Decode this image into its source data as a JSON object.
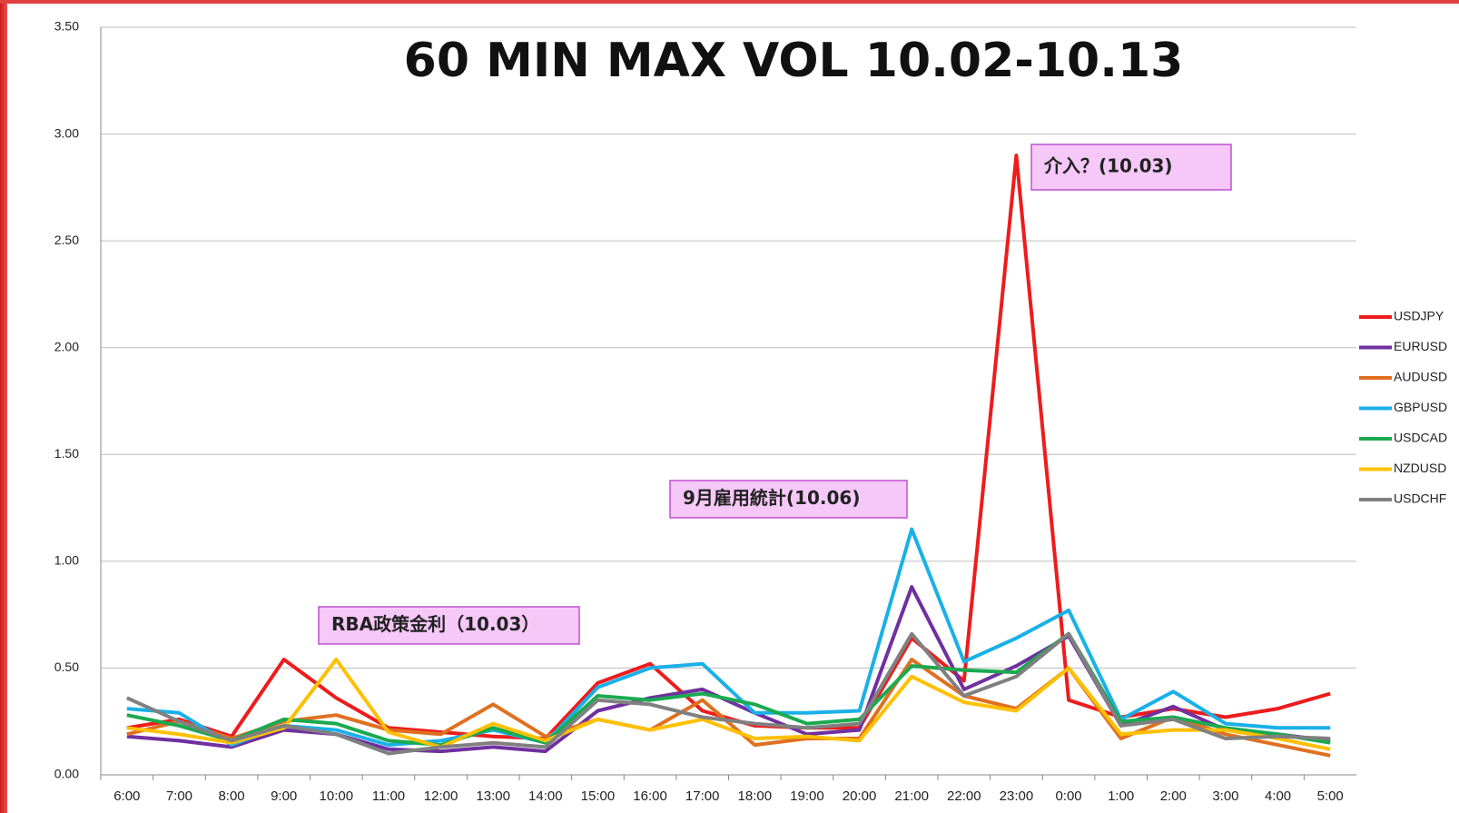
{
  "chart_data": {
    "type": "line",
    "title": "60 MIN MAX VOL 10.02-10.13",
    "categories": [
      "6:00",
      "7:00",
      "8:00",
      "9:00",
      "10:00",
      "11:00",
      "12:00",
      "13:00",
      "14:00",
      "15:00",
      "16:00",
      "17:00",
      "18:00",
      "19:00",
      "20:00",
      "21:00",
      "22:00",
      "23:00",
      "0:00",
      "1:00",
      "2:00",
      "3:00",
      "4:00",
      "5:00"
    ],
    "series": [
      {
        "name": "USDJPY",
        "color": "#ee1c1c",
        "values": [
          0.22,
          0.26,
          0.18,
          0.54,
          0.36,
          0.22,
          0.2,
          0.18,
          0.17,
          0.43,
          0.52,
          0.3,
          0.23,
          0.22,
          0.22,
          0.64,
          0.44,
          2.9,
          0.35,
          0.27,
          0.31,
          0.27,
          0.31,
          0.38
        ]
      },
      {
        "name": "EURUSD",
        "color": "#7030a0",
        "values": [
          0.18,
          0.16,
          0.13,
          0.21,
          0.19,
          0.12,
          0.11,
          0.13,
          0.11,
          0.3,
          0.36,
          0.4,
          0.29,
          0.19,
          0.21,
          0.88,
          0.4,
          0.51,
          0.65,
          0.23,
          0.32,
          0.21,
          0.19,
          0.16
        ]
      },
      {
        "name": "AUDUSD",
        "color": "#e07020",
        "values": [
          0.19,
          0.25,
          0.17,
          0.25,
          0.28,
          0.21,
          0.19,
          0.33,
          0.18,
          0.26,
          0.21,
          0.35,
          0.14,
          0.17,
          0.17,
          0.54,
          0.37,
          0.31,
          0.5,
          0.17,
          0.27,
          0.19,
          0.14,
          0.09
        ]
      },
      {
        "name": "GBPUSD",
        "color": "#1ab0e8",
        "values": [
          0.31,
          0.29,
          0.14,
          0.23,
          0.21,
          0.14,
          0.16,
          0.21,
          0.15,
          0.41,
          0.5,
          0.52,
          0.29,
          0.29,
          0.3,
          1.15,
          0.53,
          0.64,
          0.77,
          0.26,
          0.39,
          0.24,
          0.22,
          0.22
        ]
      },
      {
        "name": "USDCAD",
        "color": "#1aaa50",
        "values": [
          0.28,
          0.23,
          0.16,
          0.26,
          0.24,
          0.16,
          0.14,
          0.22,
          0.15,
          0.37,
          0.35,
          0.38,
          0.33,
          0.24,
          0.26,
          0.51,
          0.49,
          0.48,
          0.66,
          0.25,
          0.27,
          0.22,
          0.19,
          0.15
        ]
      },
      {
        "name": "NZDUSD",
        "color": "#ffc000",
        "values": [
          0.22,
          0.19,
          0.15,
          0.22,
          0.54,
          0.2,
          0.13,
          0.24,
          0.16,
          0.26,
          0.21,
          0.26,
          0.17,
          0.18,
          0.16,
          0.46,
          0.34,
          0.3,
          0.5,
          0.19,
          0.21,
          0.21,
          0.17,
          0.12
        ]
      },
      {
        "name": "USDCHF",
        "color": "#808080",
        "values": [
          0.36,
          0.25,
          0.16,
          0.23,
          0.19,
          0.1,
          0.13,
          0.15,
          0.13,
          0.35,
          0.33,
          0.27,
          0.24,
          0.22,
          0.24,
          0.66,
          0.37,
          0.46,
          0.66,
          0.23,
          0.26,
          0.17,
          0.18,
          0.17
        ]
      }
    ],
    "ylim": [
      0,
      3.5
    ],
    "yticks": [
      {
        "value": 0,
        "label": "0.00"
      },
      {
        "value": 0.5,
        "label": "0.50"
      },
      {
        "value": 1,
        "label": "1.00"
      },
      {
        "value": 1.5,
        "label": "1.50"
      },
      {
        "value": 2,
        "label": "2.00"
      },
      {
        "value": 2.5,
        "label": "2.50"
      },
      {
        "value": 3,
        "label": "3.00"
      },
      {
        "value": 3.5,
        "label": "3.50"
      }
    ],
    "grid": true,
    "legend": "right",
    "annotations": [
      "介入？(10.03)",
      "9月雇用統計(10.06)",
      "RBA政策金利（10.03）"
    ]
  }
}
